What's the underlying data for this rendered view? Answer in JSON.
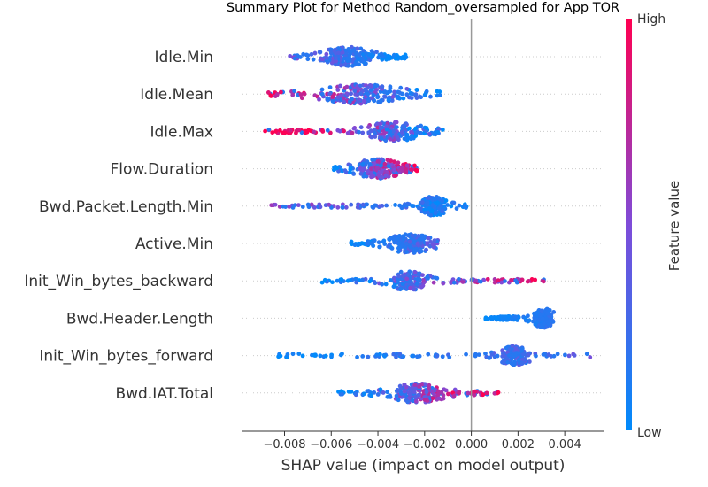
{
  "chart_data": {
    "type": "scatter",
    "subtype": "shap-beeswarm",
    "title": "Summary Plot for Method Random_oversampled for App TOR",
    "xlabel": "SHAP value (impact on model output)",
    "xlim": [
      -0.0098,
      0.0057
    ],
    "x_ticks": [
      "−0.008",
      "−0.006",
      "−0.004",
      "−0.002",
      "0.000",
      "0.002",
      "0.004"
    ],
    "x_tick_values": [
      -0.008,
      -0.006,
      -0.004,
      -0.002,
      0.0,
      0.002,
      0.004
    ],
    "zero_line": true,
    "colorbar": {
      "title": "Feature value",
      "high_label": "High",
      "low_label": "Low",
      "low_color": "#008bfb",
      "mid_color": "#7e4cd9",
      "high_color": "#ff0052"
    },
    "features": [
      {
        "name": "Idle.Min",
        "min": -0.0079,
        "max": -0.0027,
        "dense_center": -0.0053,
        "dense_width": 0.0009,
        "high_side": "left",
        "mix": 0.25
      },
      {
        "name": "Idle.Mean",
        "min": -0.0087,
        "max": -0.0013,
        "dense_center": -0.0047,
        "dense_width": 0.0016,
        "high_side": "left",
        "mix": 0.45
      },
      {
        "name": "Idle.Max",
        "min": -0.009,
        "max": -0.0012,
        "dense_center": -0.0033,
        "dense_width": 0.001,
        "high_side": "left",
        "mix": 0.6
      },
      {
        "name": "Flow.Duration",
        "min": -0.0059,
        "max": -0.0022,
        "dense_center": -0.004,
        "dense_width": 0.0009,
        "high_side": "right",
        "mix": 0.5
      },
      {
        "name": "Bwd.Packet.Length.Min",
        "min": -0.0086,
        "max": -0.0001,
        "dense_center": -0.0016,
        "dense_width": 0.0005,
        "high_side": "left",
        "mix": 0.3
      },
      {
        "name": "Active.Min",
        "min": -0.0052,
        "max": -0.0014,
        "dense_center": -0.0026,
        "dense_width": 0.0008,
        "high_side": "right",
        "mix": 0.2
      },
      {
        "name": "Init_Win_bytes_backward",
        "min": -0.0064,
        "max": 0.0033,
        "dense_center": -0.0027,
        "dense_width": 0.0007,
        "high_side": "right",
        "mix": 0.45
      },
      {
        "name": "Bwd.Header.Length",
        "min": 0.0006,
        "max": 0.0036,
        "dense_center": 0.0031,
        "dense_width": 0.0004,
        "high_side": "right",
        "mix": 0.1,
        "cluster2_center": 0.0015
      },
      {
        "name": "Init_Win_bytes_forward",
        "min": -0.0083,
        "max": 0.0051,
        "dense_center": 0.0019,
        "dense_width": 0.0006,
        "high_side": "right",
        "mix": 0.2
      },
      {
        "name": "Bwd.IAT.Total",
        "min": -0.0058,
        "max": 0.0012,
        "dense_center": -0.0023,
        "dense_width": 0.001,
        "high_side": "right",
        "mix": 0.5
      }
    ]
  }
}
